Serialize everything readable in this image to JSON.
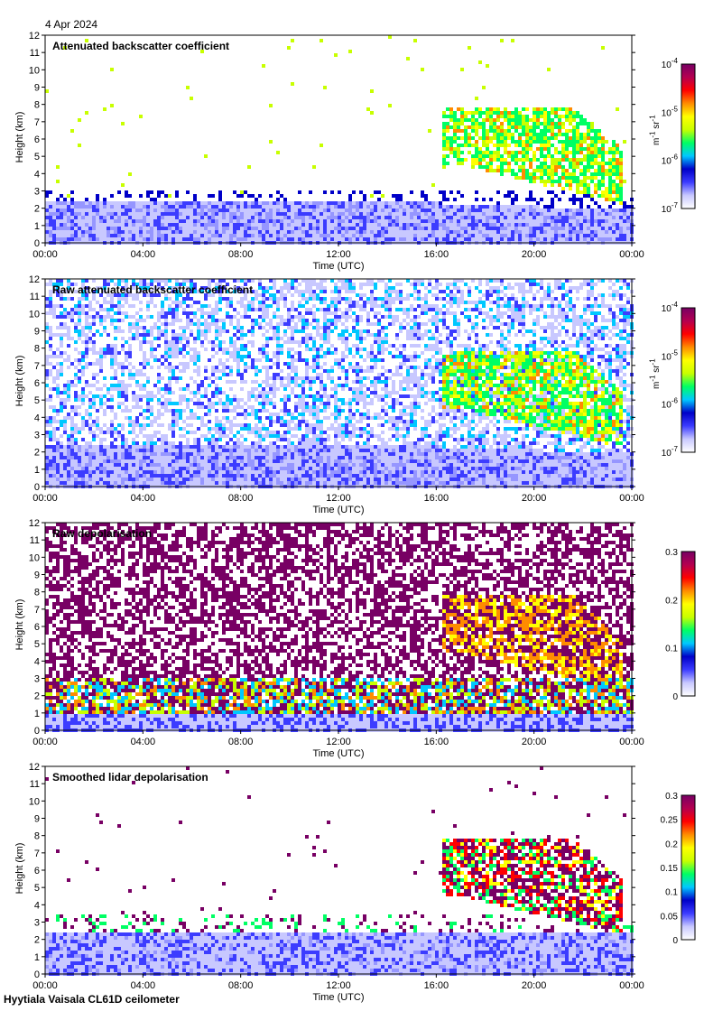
{
  "date_label": "4 Apr 2024",
  "footer": "Hyytiala Vaisala CL61D ceilometer",
  "colors": {
    "scale": [
      "#ffffff",
      "#c8c8ff",
      "#3c3cff",
      "#0000c8",
      "#00c8ff",
      "#00ff64",
      "#c8ff00",
      "#ffff00",
      "#ff8c00",
      "#ff0000",
      "#b40050",
      "#780064"
    ]
  },
  "chart_data": [
    {
      "type": "heatmap",
      "title": "Attenuated backscatter coefficient",
      "xlabel": "Time (UTC)",
      "ylabel": "Height (km)",
      "x_ticks": [
        "00:00",
        "04:00",
        "08:00",
        "12:00",
        "16:00",
        "20:00",
        "00:00"
      ],
      "y_ticks": [
        "0",
        "1",
        "2",
        "3",
        "4",
        "5",
        "6",
        "7",
        "8",
        "9",
        "10",
        "11",
        "12"
      ],
      "ylim": [
        0,
        12
      ],
      "colorbar": {
        "scale": "log",
        "ticks": [
          {
            "base": "10",
            "exp": "-4"
          },
          {
            "base": "10",
            "exp": "-5"
          },
          {
            "base": "10",
            "exp": "-6"
          },
          {
            "base": "10",
            "exp": "-7"
          }
        ],
        "unit_base": "m",
        "unit_exp1": "-1",
        "unit_mid": " sr",
        "unit_exp2": "-1"
      }
    },
    {
      "type": "heatmap",
      "title": "Raw attenuated backscatter coefficient",
      "xlabel": "Time (UTC)",
      "ylabel": "Height (km)",
      "x_ticks": [
        "00:00",
        "04:00",
        "08:00",
        "12:00",
        "16:00",
        "20:00",
        "00:00"
      ],
      "y_ticks": [
        "0",
        "1",
        "2",
        "3",
        "4",
        "5",
        "6",
        "7",
        "8",
        "9",
        "10",
        "11",
        "12"
      ],
      "ylim": [
        0,
        12
      ],
      "colorbar": {
        "scale": "log",
        "ticks": [
          {
            "base": "10",
            "exp": "-4"
          },
          {
            "base": "10",
            "exp": "-5"
          },
          {
            "base": "10",
            "exp": "-6"
          },
          {
            "base": "10",
            "exp": "-7"
          }
        ],
        "unit_base": "m",
        "unit_exp1": "-1",
        "unit_mid": " sr",
        "unit_exp2": "-1"
      }
    },
    {
      "type": "heatmap",
      "title": "Raw depolarisation",
      "xlabel": "Time (UTC)",
      "ylabel": "Height (km)",
      "x_ticks": [
        "00:00",
        "04:00",
        "08:00",
        "12:00",
        "16:00",
        "20:00",
        "00:00"
      ],
      "y_ticks": [
        "0",
        "1",
        "2",
        "3",
        "4",
        "5",
        "6",
        "7",
        "8",
        "9",
        "10",
        "11",
        "12"
      ],
      "ylim": [
        0,
        12
      ],
      "colorbar": {
        "scale": "linear",
        "ticks": [
          "0.3",
          "0.2",
          "0.1",
          "0"
        ]
      }
    },
    {
      "type": "heatmap",
      "title": "Smoothed lidar depolarisation",
      "xlabel": "Time (UTC)",
      "ylabel": "Height (km)",
      "x_ticks": [
        "00:00",
        "04:00",
        "08:00",
        "12:00",
        "16:00",
        "20:00",
        "00:00"
      ],
      "y_ticks": [
        "0",
        "1",
        "2",
        "3",
        "4",
        "5",
        "6",
        "7",
        "8",
        "9",
        "10",
        "11",
        "12"
      ],
      "ylim": [
        0,
        12
      ],
      "colorbar": {
        "scale": "linear",
        "ticks": [
          "0.3",
          "0.25",
          "0.2",
          "0.15",
          "0.1",
          "0.05",
          "0"
        ]
      }
    }
  ]
}
